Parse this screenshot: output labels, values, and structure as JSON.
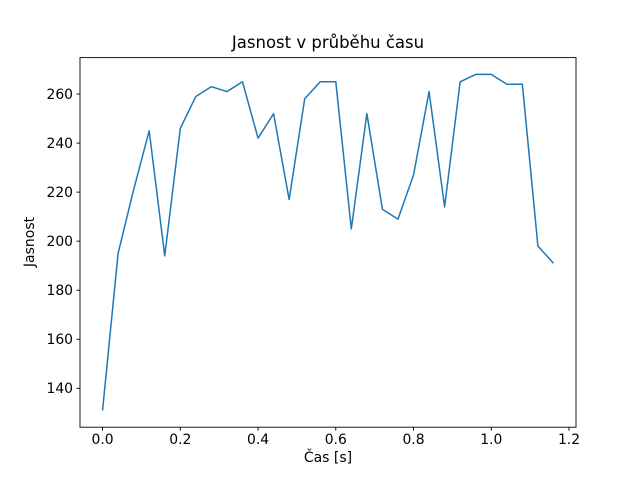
{
  "figure": {
    "title": "Jasnost v průběhu času",
    "xlabel": "Čas [s]",
    "ylabel": "Jasnost"
  },
  "chart_data": {
    "type": "line",
    "title": "Jasnost v průběhu času",
    "xlabel": "Čas [s]",
    "ylabel": "Jasnost",
    "x": [
      0.0,
      0.04,
      0.08,
      0.12,
      0.16,
      0.2,
      0.24,
      0.28,
      0.32,
      0.36,
      0.4,
      0.44,
      0.48,
      0.52,
      0.56,
      0.6,
      0.64,
      0.68,
      0.72,
      0.76,
      0.8,
      0.84,
      0.88,
      0.92,
      0.96,
      1.0,
      1.04,
      1.08,
      1.12,
      1.16
    ],
    "y": [
      131,
      195,
      221,
      245,
      194,
      246,
      259,
      263,
      261,
      265,
      242,
      252,
      217,
      258,
      265,
      265,
      205,
      252,
      213,
      209,
      227,
      261,
      214,
      265,
      268,
      268,
      264,
      264,
      198,
      191
    ],
    "series_name": "Jasnost",
    "xticks": [
      0.0,
      0.2,
      0.4,
      0.6,
      0.8,
      1.0,
      1.2
    ],
    "xtick_labels": [
      "0.0",
      "0.2",
      "0.4",
      "0.6",
      "0.8",
      "1.0",
      "1.2"
    ],
    "yticks": [
      140,
      160,
      180,
      200,
      220,
      240,
      260
    ],
    "ytick_labels": [
      "140",
      "160",
      "180",
      "200",
      "220",
      "240",
      "260"
    ],
    "xlim": [
      -0.058,
      1.218
    ],
    "ylim": [
      124.15,
      274.85
    ],
    "grid": false,
    "legend": null,
    "line_color": "#1f77b4",
    "axis_color": "#000000",
    "background_color": "#ffffff"
  }
}
